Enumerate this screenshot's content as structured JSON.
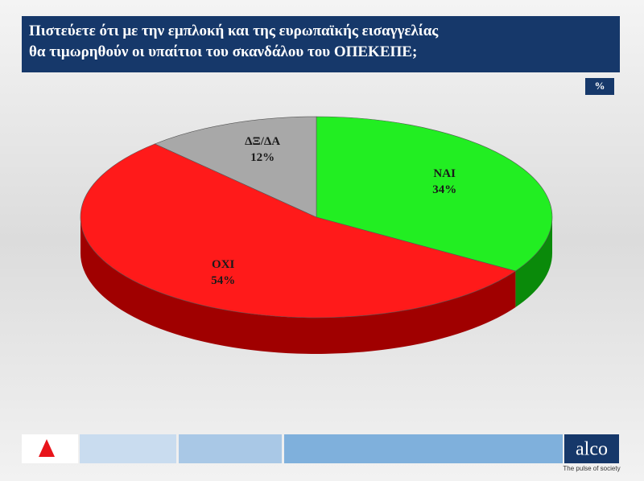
{
  "header": {
    "title": [
      "Πιστεύετε ότι με την εμπλοκή και της ευρωπαϊκής εισαγγελίας",
      "θα τιμωρηθούν οι υπαίτιοι του σκανδάλου του ΟΠΕΚΕΠΕ;"
    ],
    "unit_badge": "%"
  },
  "chart_data": {
    "type": "pie",
    "categories": [
      "ΝΑΙ",
      "ΟΧΙ",
      "ΔΞ/ΔΑ"
    ],
    "values": [
      34,
      54,
      12
    ],
    "value_labels": [
      "34%",
      "54%",
      "12%"
    ],
    "colors": [
      "#22ee22",
      "#ff1a1a",
      "#a8a8a8"
    ],
    "side_colors": [
      "#0a8a0a",
      "#a00000",
      "#6e6e6e"
    ]
  },
  "footer": {
    "brand": "alco",
    "tagline": "The pulse of society"
  }
}
